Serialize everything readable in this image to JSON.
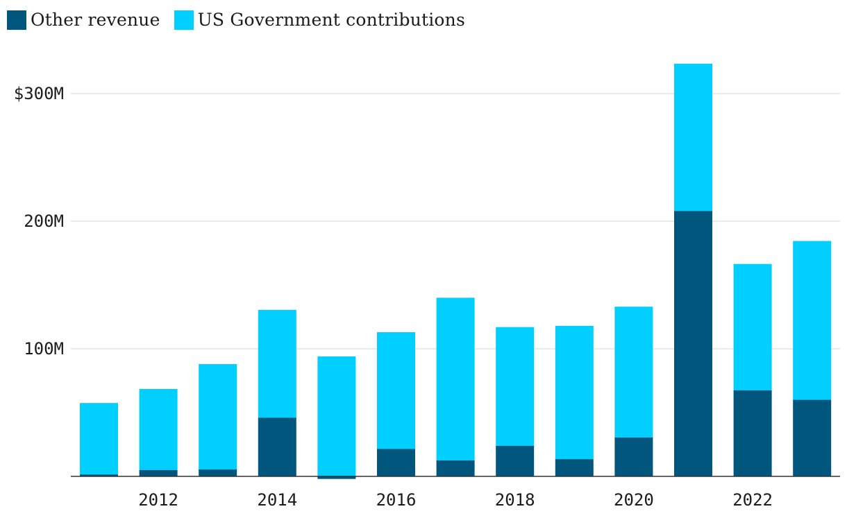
{
  "chart_data": {
    "type": "bar",
    "stacked": true,
    "categories": [
      "2011",
      "2012",
      "2013",
      "2014",
      "2015",
      "2016",
      "2017",
      "2018",
      "2019",
      "2020",
      "2021",
      "2022",
      "2023"
    ],
    "x_tick_labels": [
      "2012",
      "2014",
      "2016",
      "2018",
      "2020",
      "2022"
    ],
    "series": [
      {
        "name": "Other revenue",
        "color": "#00567d",
        "values": [
          1.5,
          5,
          5.5,
          46,
          -2,
          21.5,
          12.5,
          24,
          13.5,
          30.5,
          208,
          67.5,
          60
        ]
      },
      {
        "name": "US Government contributions",
        "color": "#00cfff",
        "values": [
          56,
          63.5,
          82.5,
          84.5,
          94,
          91.5,
          127.5,
          93,
          104.5,
          102.5,
          115.5,
          99,
          124.5
        ]
      }
    ],
    "y_ticks": [
      {
        "value": 100,
        "label": "100M"
      },
      {
        "value": 200,
        "label": "200M"
      },
      {
        "value": 300,
        "label": "$300M"
      }
    ],
    "ylim": [
      -3,
      325
    ],
    "title": "",
    "xlabel": "",
    "ylabel": "",
    "grid": true,
    "legend_position": "top-left"
  }
}
